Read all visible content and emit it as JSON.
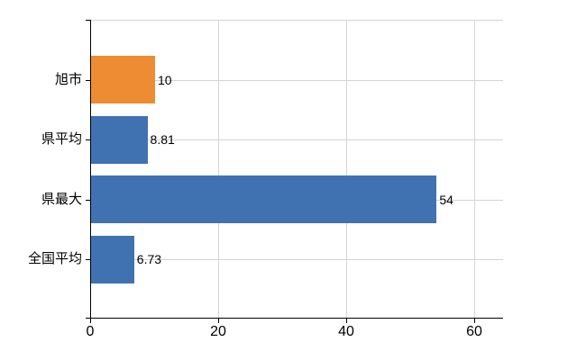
{
  "chart_data": {
    "type": "bar",
    "orientation": "horizontal",
    "title": "",
    "xlabel": "",
    "ylabel": "",
    "categories": [
      "旭市",
      "県平均",
      "県最大",
      "全国平均"
    ],
    "values": [
      10,
      8.81,
      54,
      6.73
    ],
    "value_labels": [
      "10",
      "8.81",
      "54",
      "6.73"
    ],
    "bar_colors": [
      "#ED8C32",
      "#4072B2",
      "#4072B2",
      "#4072B2"
    ],
    "x_ticks": [
      0,
      20,
      40,
      60
    ],
    "x_tick_labels": [
      "0",
      "20",
      "40",
      "60"
    ],
    "xlim": [
      0,
      64.5
    ],
    "grid": {
      "vertical": true,
      "horizontal": true,
      "color": "#D4D4D4"
    },
    "axis_color": "#000000",
    "text_color": "#000000",
    "background_color": "#FFFFFF",
    "legend": null
  }
}
